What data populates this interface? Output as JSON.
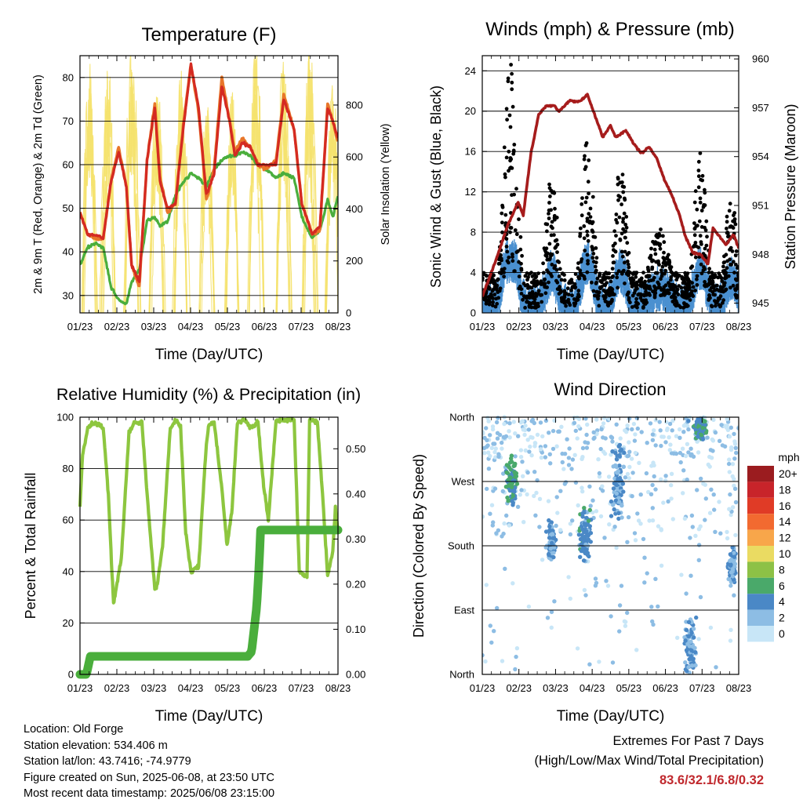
{
  "x_ticks": [
    "01/23",
    "02/23",
    "03/23",
    "04/23",
    "05/23",
    "06/23",
    "07/23",
    "08/23"
  ],
  "colors": {
    "temp2m": "#e8762a",
    "temp9m": "#d42a22",
    "dewpoint": "#4aae3c",
    "solar": "#f5e26e",
    "gust": "#000000",
    "wind": "#4a90d0",
    "pressure": "#a61c1c",
    "rh": "#8dc63f",
    "precip": "#4aae3c",
    "grid": "#000000"
  },
  "chart_data": [
    {
      "type": "line",
      "title": "Temperature (F)",
      "xlabel": "Time (Day/UTC)",
      "ylabel": "2m & 9m T (Red, Orange) & 2m Td (Green)",
      "ylabel_right": "Solar Insolation (Yellow)",
      "ylim": [
        26,
        85
      ],
      "yticks": [
        30,
        40,
        50,
        60,
        70,
        80
      ],
      "ylim_right": [
        0,
        990
      ],
      "yticks_right": [
        0,
        200,
        400,
        600,
        800
      ],
      "x": [
        0,
        0.3,
        0.6,
        0.9,
        1.2,
        1.5,
        1.8,
        2.0,
        2.3,
        2.6,
        2.9,
        3.1,
        3.4,
        3.7,
        4.0,
        4.3,
        4.6,
        4.9,
        5.2,
        5.5,
        5.8,
        6.0,
        6.3,
        6.6,
        6.9,
        7.2
      ],
      "series": [
        {
          "key": "temp9m",
          "values": [
            49,
            44,
            44,
            43,
            56,
            63,
            55,
            37,
            33,
            61,
            73,
            56,
            50,
            51,
            68,
            83,
            73,
            53,
            58,
            78,
            70,
            62,
            65,
            64,
            60,
            60
          ]
        },
        {
          "key": "temp2m",
          "values": [
            49,
            44,
            43,
            43,
            56,
            64,
            55,
            37,
            32,
            61,
            74,
            57,
            49,
            51,
            69,
            83,
            72,
            52,
            59,
            80,
            70,
            63,
            66,
            64,
            60,
            59
          ]
        },
        {
          "key": "dewpoint",
          "values": [
            37,
            41,
            42,
            41,
            32,
            29,
            28,
            33,
            36,
            47,
            48,
            46,
            47,
            53,
            56,
            58,
            57,
            55,
            59,
            61,
            62,
            62,
            63,
            62,
            60,
            59
          ]
        }
      ],
      "series_tail": {
        "x": [
          7.2,
          7.6,
          7.9,
          8.3,
          8.6,
          9.0,
          9.3,
          9.6,
          9.8,
          10.0
        ],
        "temp9m": [
          59,
          60,
          75,
          68,
          51,
          44,
          46,
          73,
          70,
          66
        ],
        "temp2m": [
          58,
          61,
          76,
          68,
          51,
          44,
          45,
          74,
          70,
          65
        ],
        "dewpoint": [
          58,
          57,
          58,
          57,
          48,
          43,
          45,
          52,
          48,
          53
        ]
      },
      "solar_peaks_x": [
        0.35,
        1.1,
        2.0,
        3.0,
        3.9,
        4.9,
        5.9,
        6.8,
        7.9,
        8.9,
        9.8
      ],
      "solar_peaks": [
        920,
        890,
        960,
        850,
        900,
        780,
        820,
        980,
        940,
        970,
        860
      ]
    },
    {
      "type": "scatter",
      "title": "Winds (mph) & Pressure (mb)",
      "xlabel": "Time (Day/UTC)",
      "ylabel": "Sonic Wind & Gust (Blue, Black)",
      "ylabel_right": "Station Pressure (Maroon)",
      "ylim": [
        0,
        25.5
      ],
      "yticks": [
        0,
        4,
        8,
        12,
        16,
        20,
        24
      ],
      "ylim_right": [
        944.4,
        960.2
      ],
      "yticks_right": [
        945,
        948,
        951,
        954,
        957,
        960
      ],
      "pressure_x": [
        0,
        0.5,
        1.0,
        1.4,
        1.6,
        1.9,
        2.2,
        2.5,
        2.8,
        3.0,
        3.4,
        3.8,
        4.1,
        4.4,
        4.7,
        5.0,
        5.2,
        5.6,
        5.9,
        6.2,
        6.5,
        6.8,
        7.1,
        7.4,
        7.7,
        7.9,
        8.2,
        8.5,
        8.8,
        9.0,
        9.2,
        9.5,
        9.8,
        10.0
      ],
      "pressure": [
        945.4,
        947.5,
        949.8,
        951.2,
        950.4,
        954.2,
        956.6,
        957.1,
        957.1,
        956.8,
        957.4,
        957.4,
        957.8,
        956.5,
        955.2,
        955.9,
        955.2,
        955.6,
        954.8,
        954.2,
        954.6,
        953.9,
        952.6,
        951.6,
        950.4,
        949.2,
        948.1,
        948.0,
        947.4,
        949.6,
        949.2,
        948.6,
        949.2,
        948.4
      ],
      "gust_bursts": [
        {
          "center": 1.1,
          "peak": 23.7,
          "width": 0.55
        },
        {
          "center": 2.7,
          "peak": 13.5,
          "width": 0.5
        },
        {
          "center": 4.1,
          "peak": 17.3,
          "width": 0.5
        },
        {
          "center": 5.4,
          "peak": 14.2,
          "width": 0.5
        },
        {
          "center": 6.9,
          "peak": 8.0,
          "width": 0.9
        },
        {
          "center": 8.5,
          "peak": 15.2,
          "width": 0.5
        },
        {
          "center": 9.7,
          "peak": 12.0,
          "width": 0.45
        }
      ]
    },
    {
      "type": "line",
      "title": "Relative Humidity (%) & Precipitation (in)",
      "xlabel": "Time (Day/UTC)",
      "ylabel": "Percent & Total Rainfall",
      "ylim": [
        0,
        100
      ],
      "yticks": [
        0,
        20,
        40,
        60,
        80,
        100
      ],
      "ylim_right": [
        0,
        0.57
      ],
      "yticks_right": [
        "0.00",
        "0.10",
        "0.20",
        "0.30",
        "0.40",
        "0.50"
      ],
      "rh_x": [
        0,
        0.1,
        0.3,
        0.6,
        0.9,
        1.1,
        1.3,
        1.6,
        1.9,
        2.1,
        2.4,
        2.6,
        2.9,
        3.0,
        3.2,
        3.5,
        3.7,
        3.9,
        4.1,
        4.3,
        4.6,
        4.9,
        5.0,
        5.2,
        5.5,
        5.7,
        5.9,
        6.1,
        6.4,
        6.6,
        6.9,
        7.1,
        7.3,
        7.6,
        7.8,
        8.1,
        8.3,
        8.5,
        8.8,
        8.9,
        9.2,
        9.4,
        9.6,
        9.8,
        9.9,
        10.0
      ],
      "rh": [
        65,
        85,
        96,
        98,
        96,
        70,
        27,
        45,
        94,
        98,
        98,
        70,
        33,
        35,
        50,
        96,
        99,
        96,
        55,
        40,
        42,
        90,
        97,
        98,
        72,
        50,
        65,
        98,
        99,
        96,
        98,
        75,
        60,
        99,
        99,
        99,
        99,
        40,
        38,
        99,
        98,
        70,
        38,
        48,
        65,
        55
      ],
      "precip_x": [
        0,
        0.25,
        0.4,
        0.6,
        3.0,
        6.5,
        6.65,
        6.75,
        6.85,
        6.95,
        7.0,
        7.2,
        9.9,
        10.0
      ],
      "precip": [
        0,
        0,
        0.04,
        0.04,
        0.04,
        0.04,
        0.05,
        0.1,
        0.15,
        0.25,
        0.32,
        0.32,
        0.32,
        0.32
      ]
    },
    {
      "type": "scatter",
      "title": "Wind Direction",
      "xlabel": "Time (Day/UTC)",
      "ylabel": "Direction (Colored By Speed)",
      "yticks": [
        "North",
        "West",
        "South",
        "East",
        "North"
      ],
      "ylim": [
        0,
        360
      ],
      "legend_title": "mph",
      "legend": [
        "20+",
        "18",
        "16",
        "14",
        "12",
        "10",
        "8",
        "6",
        "4",
        "2",
        "0"
      ],
      "legend_colors": [
        "#9b1c1f",
        "#c8242a",
        "#e03b26",
        "#f26a30",
        "#f8a64a",
        "#eadb62",
        "#8dc146",
        "#4aa96a",
        "#4a88c6",
        "#8dbde4",
        "#c8e6f7"
      ],
      "clusters": [
        {
          "center": 1.15,
          "spread": 0.25,
          "dir": 270,
          "dir_spread": 45,
          "speed": 5
        },
        {
          "center": 2.7,
          "spread": 0.25,
          "dir": 190,
          "dir_spread": 40,
          "speed": 3
        },
        {
          "center": 4.0,
          "spread": 0.3,
          "dir": 195,
          "dir_spread": 50,
          "speed": 4
        },
        {
          "center": 5.3,
          "spread": 0.35,
          "dir": 270,
          "dir_spread": 70,
          "speed": 3
        },
        {
          "center": 8.1,
          "spread": 0.3,
          "dir": 35,
          "dir_spread": 60,
          "speed": 3
        },
        {
          "center": 8.5,
          "spread": 0.3,
          "dir": 345,
          "dir_spread": 20,
          "speed": 5
        },
        {
          "center": 9.75,
          "spread": 0.2,
          "dir": 150,
          "dir_spread": 35,
          "speed": 3
        }
      ]
    }
  ],
  "info": {
    "location": "Location: Old Forge",
    "elevation": "Station elevation: 534.406 m",
    "latlon": "Station lat/lon: 43.7416; -74.9779",
    "created": "Figure created on Sun, 2025-06-08, at 23:50 UTC",
    "recent": "Most recent data timestamp: 2025/06/08 23:15:00"
  },
  "extremes": {
    "title": "Extremes For Past 7 Days",
    "subtitle": "(High/Low/Max Wind/Total Precipitation)",
    "values": "83.6/32.1/6.8/0.32"
  }
}
